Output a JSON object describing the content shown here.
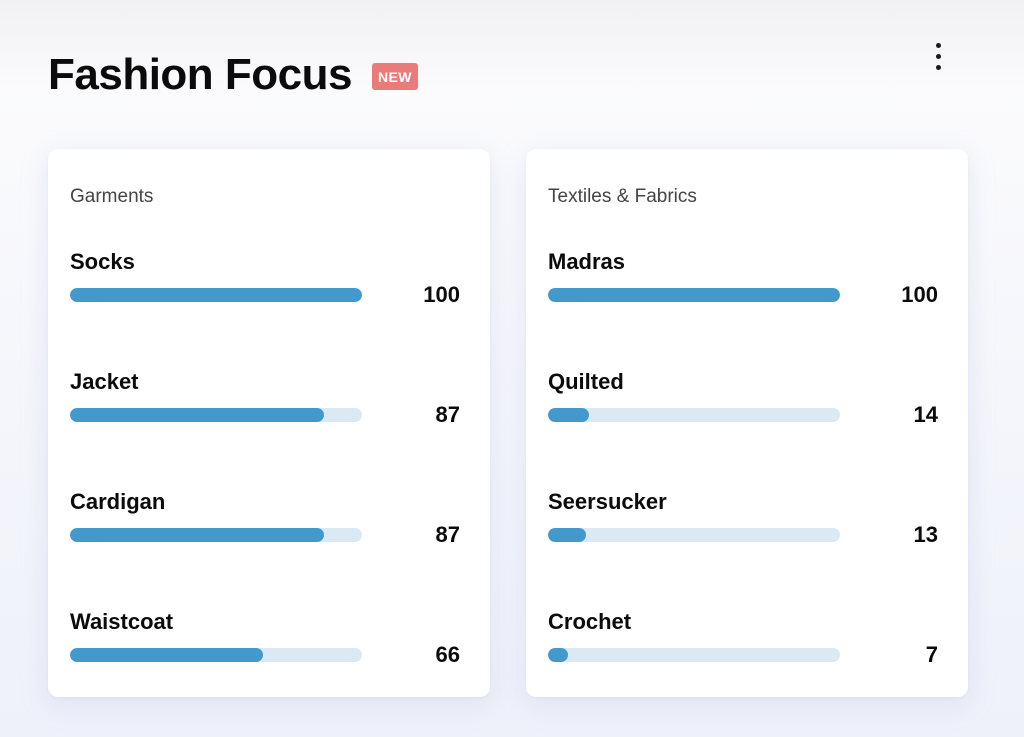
{
  "header": {
    "title": "Fashion Focus",
    "badge": "NEW",
    "menu_icon": "vertical-dots-icon"
  },
  "colors": {
    "bar_fill": "#4499cc",
    "bar_track": "#dbe9f5",
    "badge": "#e97b7b"
  },
  "cards": [
    {
      "title": "Garments",
      "max": 100,
      "items": [
        {
          "label": "Socks",
          "value": 100
        },
        {
          "label": "Jacket",
          "value": 87
        },
        {
          "label": "Cardigan",
          "value": 87
        },
        {
          "label": "Waistcoat",
          "value": 66
        }
      ]
    },
    {
      "title": "Textiles & Fabrics",
      "max": 100,
      "items": [
        {
          "label": "Madras",
          "value": 100
        },
        {
          "label": "Quilted",
          "value": 14
        },
        {
          "label": "Seersucker",
          "value": 13
        },
        {
          "label": "Crochet",
          "value": 7
        }
      ]
    }
  ]
}
